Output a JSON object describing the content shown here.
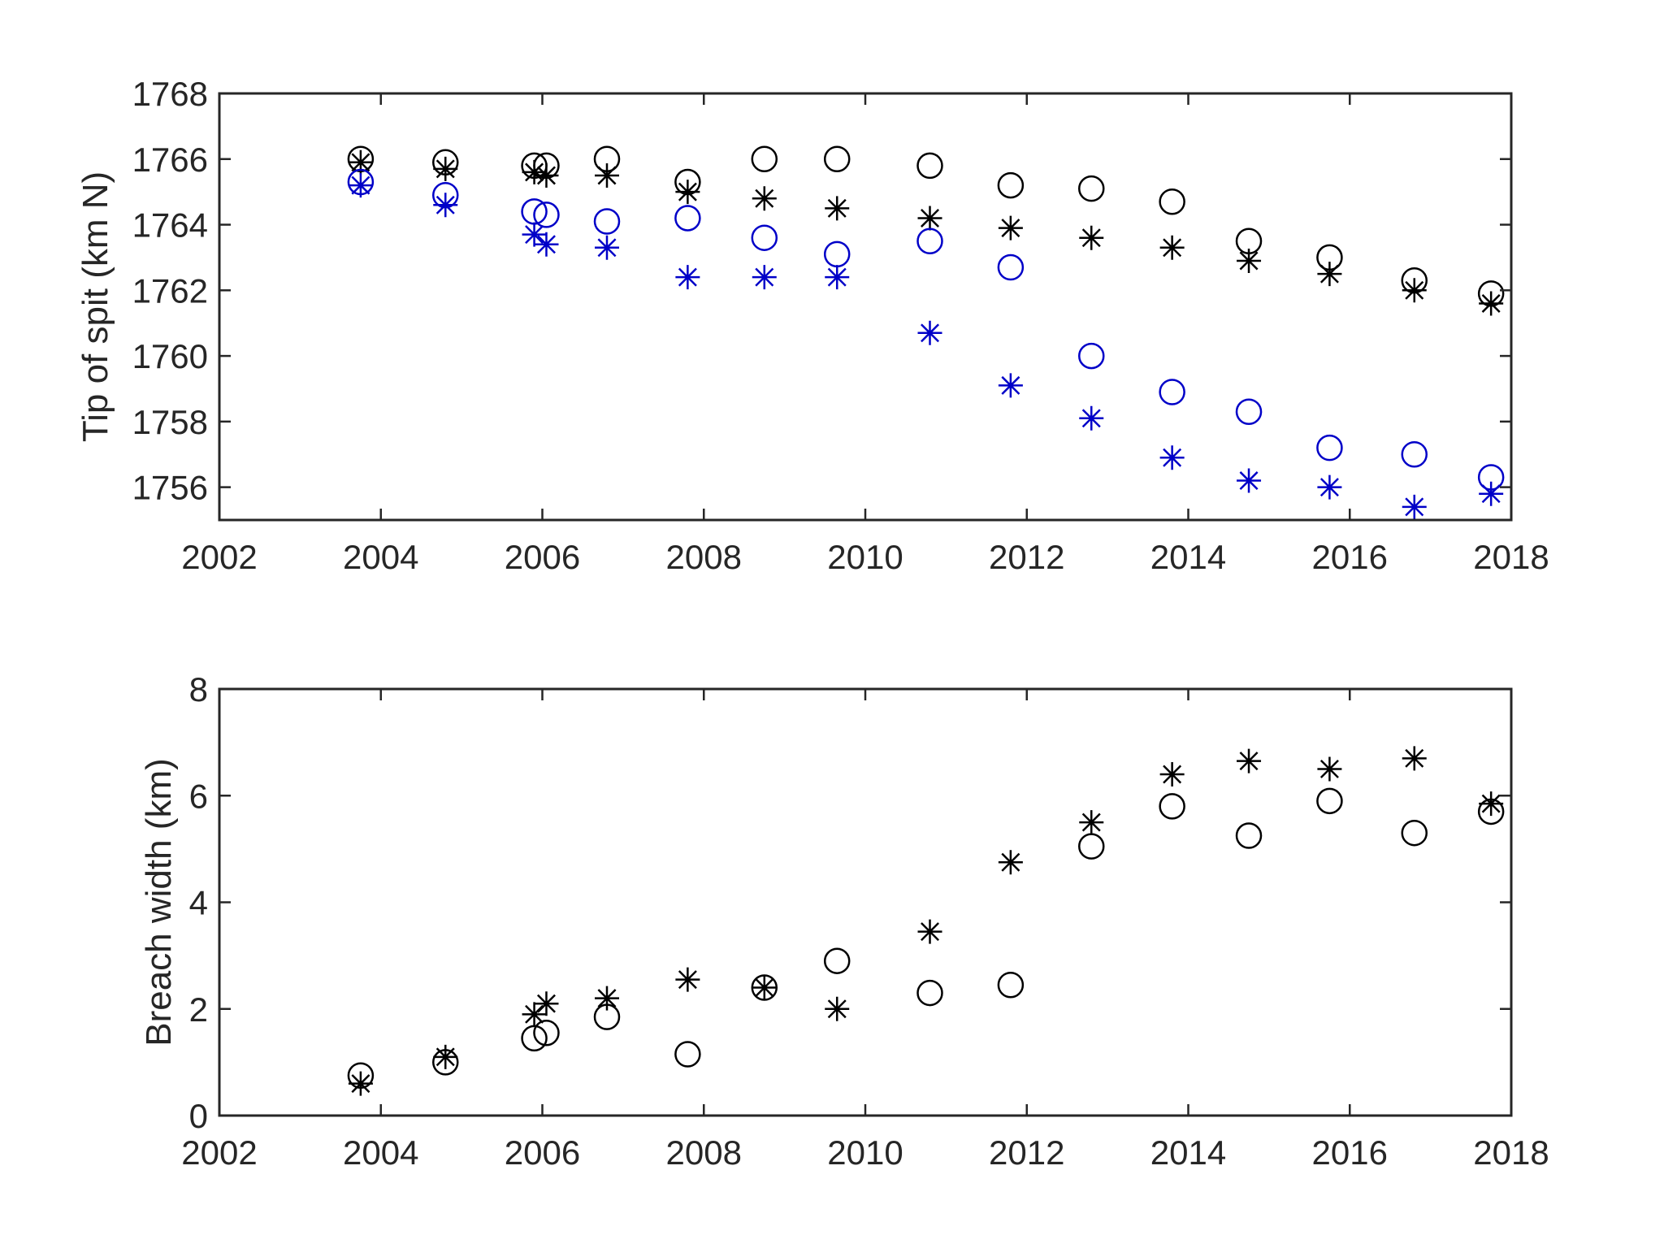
{
  "chart_data": [
    {
      "type": "scatter",
      "title": "",
      "xlabel": "",
      "ylabel": "Tip of spit (km N)",
      "xlim": [
        2002,
        2018
      ],
      "ylim": [
        1755,
        1768
      ],
      "xticks": [
        "2002",
        "2004",
        "2006",
        "2008",
        "2010",
        "2012",
        "2014",
        "2016",
        "2018"
      ],
      "yticks": [
        "1756",
        "1758",
        "1760",
        "1762",
        "1764",
        "1766",
        "1768"
      ],
      "grid": false,
      "legend": "none",
      "series": [
        {
          "marker": "circle",
          "color": "#000000",
          "x": [
            2003.75,
            2004.8,
            2005.9,
            2006.05,
            2006.8,
            2007.8,
            2008.75,
            2009.65,
            2010.8,
            2011.8,
            2012.8,
            2013.8,
            2014.75,
            2015.75,
            2016.8,
            2017.75
          ],
          "y": [
            1766.0,
            1765.9,
            1765.8,
            1765.8,
            1766.0,
            1765.3,
            1766.0,
            1766.0,
            1765.8,
            1765.2,
            1765.1,
            1764.7,
            1763.5,
            1763.0,
            1762.3,
            1761.9
          ]
        },
        {
          "marker": "asterisk",
          "color": "#000000",
          "x": [
            2003.75,
            2004.8,
            2005.9,
            2006.05,
            2006.8,
            2007.8,
            2008.75,
            2009.65,
            2010.8,
            2011.8,
            2012.8,
            2013.8,
            2014.75,
            2015.75,
            2016.8,
            2017.75
          ],
          "y": [
            1765.9,
            1765.7,
            1765.6,
            1765.5,
            1765.5,
            1765.0,
            1764.8,
            1764.5,
            1764.2,
            1763.9,
            1763.6,
            1763.3,
            1762.9,
            1762.5,
            1762.0,
            1761.6
          ]
        },
        {
          "marker": "circle",
          "color": "#0000c8",
          "x": [
            2003.75,
            2004.8,
            2005.9,
            2006.05,
            2006.8,
            2007.8,
            2008.75,
            2009.65,
            2010.8,
            2011.8,
            2012.8,
            2013.8,
            2014.75,
            2015.75,
            2016.8,
            2017.75
          ],
          "y": [
            1765.3,
            1764.9,
            1764.4,
            1764.3,
            1764.1,
            1764.2,
            1763.6,
            1763.1,
            1763.5,
            1762.7,
            1760.0,
            1758.9,
            1758.3,
            1757.2,
            1757.0,
            1756.3
          ]
        },
        {
          "marker": "asterisk",
          "color": "#0000c8",
          "x": [
            2003.75,
            2004.8,
            2005.9,
            2006.05,
            2006.8,
            2007.8,
            2008.75,
            2009.65,
            2010.8,
            2011.8,
            2012.8,
            2013.8,
            2014.75,
            2015.75,
            2016.8,
            2017.75
          ],
          "y": [
            1765.2,
            1764.6,
            1763.7,
            1763.4,
            1763.3,
            1762.4,
            1762.4,
            1762.4,
            1760.7,
            1759.1,
            1758.1,
            1756.9,
            1756.2,
            1756.0,
            1755.4,
            1755.8
          ]
        }
      ]
    },
    {
      "type": "scatter",
      "title": "",
      "xlabel": "",
      "ylabel": "Breach width (km)",
      "xlim": [
        2002,
        2018
      ],
      "ylim": [
        0,
        8
      ],
      "xticks": [
        "2002",
        "2004",
        "2006",
        "2008",
        "2010",
        "2012",
        "2014",
        "2016",
        "2018"
      ],
      "yticks": [
        "0",
        "2",
        "4",
        "6",
        "8"
      ],
      "grid": false,
      "legend": "none",
      "series": [
        {
          "marker": "circle",
          "color": "#000000",
          "x": [
            2003.75,
            2004.8,
            2005.9,
            2006.05,
            2006.8,
            2007.8,
            2008.75,
            2009.65,
            2010.8,
            2011.8,
            2012.8,
            2013.8,
            2014.75,
            2015.75,
            2016.8,
            2017.75
          ],
          "y": [
            0.75,
            1.0,
            1.45,
            1.55,
            1.85,
            1.15,
            2.4,
            2.9,
            2.3,
            2.45,
            5.05,
            5.8,
            5.25,
            5.9,
            5.3,
            5.7
          ]
        },
        {
          "marker": "asterisk",
          "color": "#000000",
          "x": [
            2003.75,
            2004.8,
            2005.9,
            2006.05,
            2006.8,
            2007.8,
            2008.75,
            2009.65,
            2010.8,
            2011.8,
            2012.8,
            2013.8,
            2014.75,
            2015.75,
            2016.8,
            2017.75
          ],
          "y": [
            0.6,
            1.1,
            1.9,
            2.1,
            2.2,
            2.55,
            2.4,
            2.0,
            3.45,
            4.75,
            5.5,
            6.4,
            6.65,
            6.5,
            6.7,
            5.85
          ]
        }
      ]
    }
  ]
}
